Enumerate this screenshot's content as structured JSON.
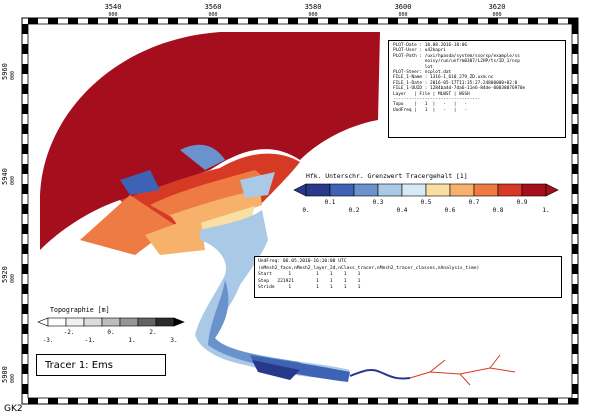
{
  "map": {
    "corner_label": "GK2",
    "grid": {
      "top_labels": [
        "3540",
        "3560",
        "3580",
        "3600",
        "3620"
      ],
      "top_sub": [
        "000",
        "000",
        "000",
        "000",
        "000"
      ],
      "left_labels": [
        "5960",
        "5940",
        "5920",
        "5900"
      ],
      "left_sub": [
        "000",
        "000",
        "000",
        "000"
      ]
    }
  },
  "plot_info": {
    "lines": [
      "PLOT-Date : 18.08.2016-10:06",
      "PLOT-User : u42kapri",
      "PLOT-Path : /uxi/hpasda/system/ssorsp/example/ss",
      "            noisy/run/unfrm0307/L2HP/ts/ID_1/nsp",
      "            lot",
      "PLOT-Steer: ncplot.dat",
      "",
      "FILE_1-Name : 1316-1_610_279_ZD.uxm.nc",
      "FILE_1-Date : 2016-05-17T11:35:27.24800000+02:0",
      "FILE_1-UUID : 1284ba4d-7da6-11e6-84de-00038076970e",
      "",
      "Layer   | File | MLWST | WSSH",
      "---------------------------------",
      "Topo    |   1  |   -   |   -",
      "UndFreq |   1  |   -   |   -"
    ]
  },
  "colorbar": {
    "title": "Hfk. Unterschr. Grenzwert Tracergehalt [1]",
    "ticks": [
      "0.",
      "0.1",
      "0.2",
      "0.3",
      "0.4",
      "0.5",
      "0.6",
      "0.7",
      "0.8",
      "0.9",
      "1."
    ],
    "colors": [
      "#27398a",
      "#3f63b4",
      "#6a92cc",
      "#a9c9e6",
      "#d8ebf4",
      "#f9dfa2",
      "#f6b26b",
      "#ee7b43",
      "#d63a25",
      "#a50f1d"
    ]
  },
  "time_info": {
    "lines": [
      "UndFreq: 06.05.2010-16:10:00 UTC",
      "(nMesh2_face,nMesh2_layer_2d,nClass_tracer,nMesh2_tracer_classes,nAnalysis_time)",
      "Start      1         1    1    1    1",
      "Step   221921        1    1    1    1",
      "Stride     1         1    1    1    1"
    ]
  },
  "topo_legend": {
    "title": "Topographie [m]",
    "labels": [
      "-3.",
      "-2.",
      "-1.",
      "0.",
      "1.",
      "2.",
      "3."
    ],
    "colors": [
      "#ffffff",
      "#f0f0f0",
      "#dcdcdc",
      "#bdbdbd",
      "#969696",
      "#636363",
      "#2b2b2b"
    ]
  },
  "tracer": {
    "label": "Tracer 1: Ems"
  }
}
